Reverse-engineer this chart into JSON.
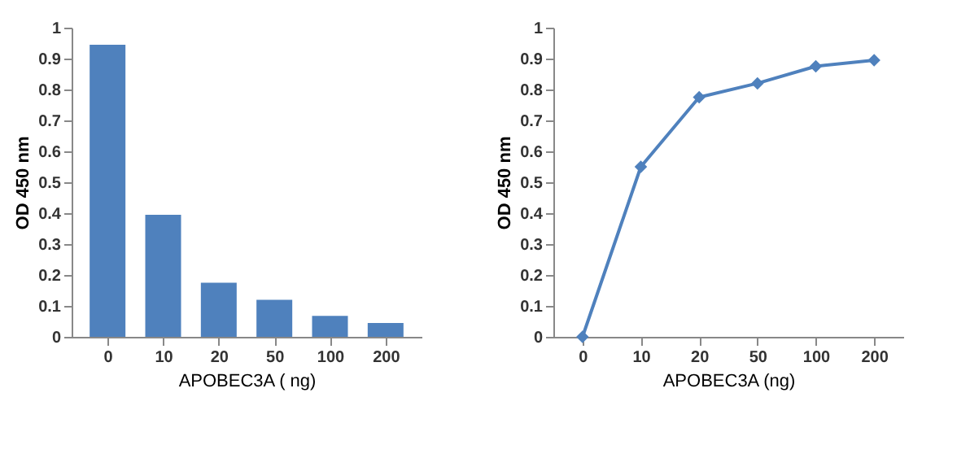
{
  "chart_data": [
    {
      "type": "bar",
      "categories": [
        "0",
        "10",
        "20",
        "50",
        "100",
        "200"
      ],
      "xlabel": "APOBEC3A ( ng)",
      "ylabel": "OD 450 nm",
      "ylim": [
        0,
        1
      ],
      "yticks": [
        0,
        0.1,
        0.2,
        0.3,
        0.4,
        0.5,
        0.6,
        0.7,
        0.8,
        0.9,
        1
      ],
      "grid": false,
      "legend": false,
      "series": [
        {
          "color": "#4f81bd",
          "values": [
            0.945,
            0.395,
            0.175,
            0.12,
            0.068,
            0.045
          ]
        }
      ]
    },
    {
      "type": "line",
      "categories": [
        "0",
        "10",
        "20",
        "50",
        "100",
        "200"
      ],
      "xlabel": "APOBEC3A (ng)",
      "ylabel": "OD 450 nm",
      "ylim": [
        0,
        1
      ],
      "yticks": [
        0,
        0.1,
        0.2,
        0.3,
        0.4,
        0.5,
        0.6,
        0.7,
        0.8,
        0.9,
        1
      ],
      "grid": false,
      "legend": false,
      "marker": "diamond",
      "line_style": "solid",
      "series": [
        {
          "color": "#4f81bd",
          "values": [
            0,
            0.55,
            0.775,
            0.82,
            0.875,
            0.895
          ]
        }
      ]
    }
  ]
}
